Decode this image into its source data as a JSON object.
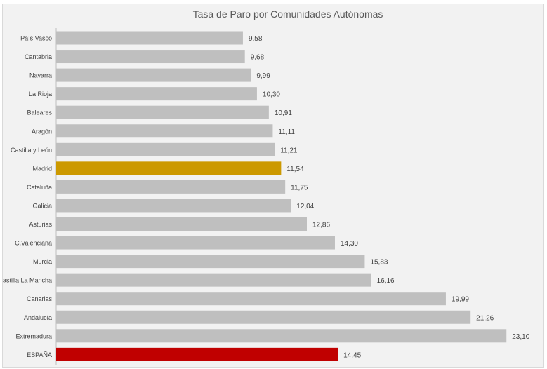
{
  "chart_data": {
    "type": "bar",
    "orientation": "horizontal",
    "title": "Tasa de Paro por Comunidades  Autónomas",
    "categories": [
      "País Vasco",
      "Cantabria",
      "Navarra",
      "La Rioja",
      "Baleares",
      "Aragón",
      "Castilla y León",
      "Madrid",
      "Cataluña",
      "Galicia",
      "Asturias",
      "C.Valenciana",
      "Murcia",
      "Castilla La Mancha",
      "Canarias",
      "Andalucía",
      "Extremadura",
      "ESPAÑA"
    ],
    "values": [
      9.58,
      9.68,
      9.99,
      10.3,
      10.91,
      11.11,
      11.21,
      11.54,
      11.75,
      12.04,
      12.86,
      14.3,
      15.83,
      16.16,
      19.99,
      21.26,
      23.1,
      14.45
    ],
    "value_labels": [
      "9,58",
      "9,68",
      "9,99",
      "10,30",
      "10,91",
      "11,11",
      "11,21",
      "11,54",
      "11,75",
      "12,04",
      "12,86",
      "14,30",
      "15,83",
      "16,16",
      "19,99",
      "21,26",
      "23,10",
      "14,45"
    ],
    "xlim": [
      0,
      25
    ],
    "grid": false,
    "legend": "none",
    "colors": {
      "default": "#bfbfbf",
      "highlight_madrid": "#cc9900",
      "highlight_espana": "#c00000"
    },
    "bar_colors": [
      "default",
      "default",
      "default",
      "default",
      "default",
      "default",
      "default",
      "highlight_madrid",
      "default",
      "default",
      "default",
      "default",
      "default",
      "default",
      "default",
      "default",
      "default",
      "highlight_espana"
    ]
  }
}
